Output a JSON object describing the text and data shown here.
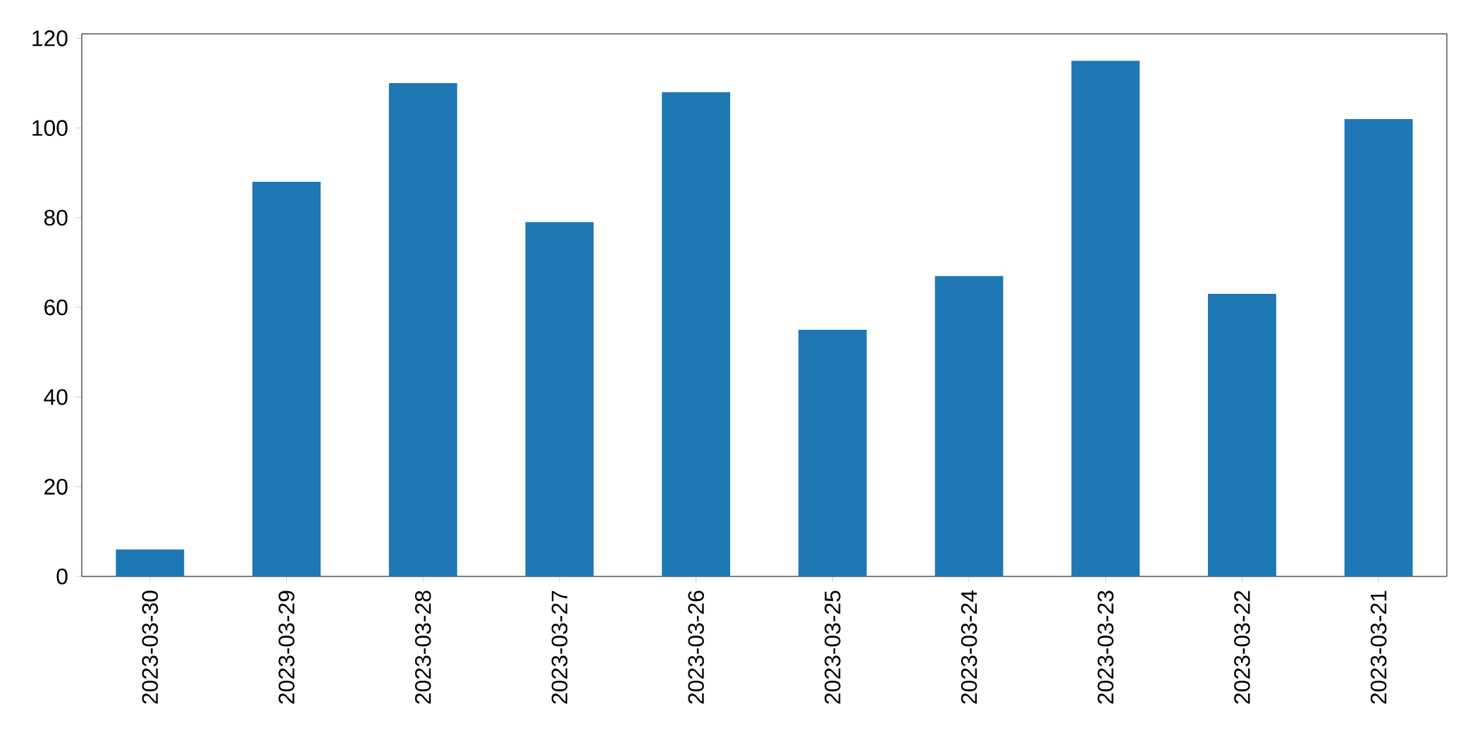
{
  "chart_data": {
    "type": "bar",
    "categories": [
      "2023-03-30",
      "2023-03-29",
      "2023-03-28",
      "2023-03-27",
      "2023-03-26",
      "2023-03-25",
      "2023-03-24",
      "2023-03-23",
      "2023-03-22",
      "2023-03-21"
    ],
    "values": [
      6,
      88,
      110,
      79,
      108,
      55,
      67,
      115,
      63,
      102
    ],
    "color": "#1f77b4",
    "ylim": [
      0,
      121
    ],
    "yticks": [
      0,
      20,
      40,
      60,
      80,
      100,
      120
    ]
  }
}
